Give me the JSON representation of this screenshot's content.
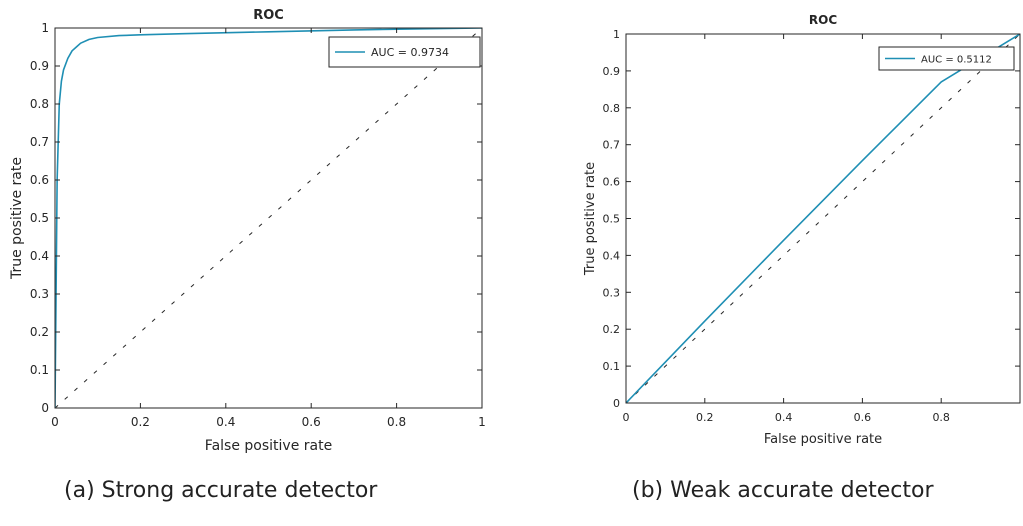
{
  "captions": {
    "a": "(a) Strong accurate detector",
    "b": "(b) Weak accurate detector"
  },
  "colors": {
    "curve": "#1f8fb4",
    "axis": "#262626",
    "diagonal": "#262626",
    "background": "#ffffff"
  },
  "chart_data": [
    {
      "type": "line",
      "title": "ROC",
      "xlabel": "False positive rate",
      "ylabel": "True positive rate",
      "xlim": [
        0,
        1
      ],
      "ylim": [
        0,
        1
      ],
      "xticks": [
        0,
        0.2,
        0.4,
        0.6,
        0.8,
        1
      ],
      "xtick_labels": [
        "0",
        "0.2",
        "0.4",
        "0.6",
        "0.8",
        "1"
      ],
      "yticks": [
        0,
        0.1,
        0.2,
        0.3,
        0.4,
        0.5,
        0.6,
        0.7,
        0.8,
        0.9,
        1
      ],
      "ytick_labels": [
        "0",
        "0.1",
        "0.2",
        "0.3",
        "0.4",
        "0.5",
        "0.6",
        "0.7",
        "0.8",
        "0.9",
        "1"
      ],
      "grid": false,
      "legend": {
        "placement": "top-right",
        "entries": [
          "AUC = 0.9734"
        ]
      },
      "series": [
        {
          "x": [
            0,
            0.005,
            0.01,
            0.015,
            0.02,
            0.03,
            0.04,
            0.05,
            0.06,
            0.08,
            0.1,
            0.15,
            0.2,
            0.3,
            0.5,
            0.7,
            1
          ],
          "y": [
            0,
            0.6,
            0.8,
            0.86,
            0.89,
            0.92,
            0.94,
            0.95,
            0.96,
            0.97,
            0.975,
            0.98,
            0.982,
            0.985,
            0.99,
            0.995,
            1
          ]
        }
      ],
      "reference_line": {
        "style": "dashed",
        "x": [
          0,
          1
        ],
        "y": [
          0,
          1
        ]
      }
    },
    {
      "type": "line",
      "title": "ROC",
      "xlabel": "False positive rate",
      "ylabel": "True positive rate",
      "xlim": [
        0,
        1
      ],
      "ylim": [
        0,
        1
      ],
      "xticks": [
        0,
        0.2,
        0.4,
        0.6,
        0.8
      ],
      "xtick_labels": [
        "0",
        "0.2",
        "0.4",
        "0.6",
        "0.8"
      ],
      "yticks": [
        0,
        0.1,
        0.2,
        0.3,
        0.4,
        0.5,
        0.6,
        0.7,
        0.8,
        0.9,
        1
      ],
      "ytick_labels": [
        "0",
        "0.1",
        "0.2",
        "0.3",
        "0.4",
        "0.5",
        "0.6",
        "0.7",
        "0.8",
        "0.9",
        "1"
      ],
      "grid": false,
      "legend": {
        "placement": "top-right",
        "entries": [
          "AUC = 0.5112"
        ]
      },
      "series": [
        {
          "x": [
            0,
            0.2,
            0.4,
            0.6,
            0.8,
            1
          ],
          "y": [
            0,
            0.222,
            0.441,
            0.657,
            0.87,
            1
          ]
        }
      ],
      "reference_line": {
        "style": "dashed",
        "x": [
          0,
          1
        ],
        "y": [
          0,
          1
        ]
      }
    }
  ]
}
